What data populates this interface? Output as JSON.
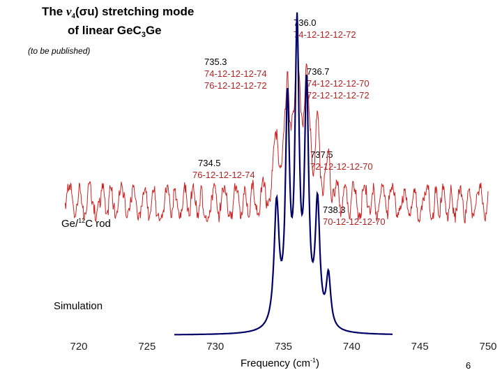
{
  "chart_data": {
    "type": "line",
    "title": {
      "prefix": "The ",
      "nu": "ν",
      "nu_sub": "4",
      "mode_symbol": "(σu)",
      "suffix": " stretching mode",
      "line2_prefix": "of linear  GeC",
      "line2_sub": "3",
      "line2_suffix": "Ge"
    },
    "note": "(to be published)",
    "xlabel": {
      "text": "Frequency (cm",
      "sup": "-1",
      "close": ")"
    },
    "xlim": [
      718,
      751
    ],
    "xticks": [
      720,
      725,
      730,
      735,
      740,
      745,
      750
    ],
    "page_number": "6",
    "series": [
      {
        "name": "Ge/12C rod",
        "label_prefix": "Ge/",
        "label_sup": "12",
        "label_suffix": "C rod",
        "color": "#cc2222",
        "x_range": [
          719,
          750
        ],
        "baseline_fraction": 0.3,
        "noise_fraction": 0.18,
        "peaks": [
          {
            "center": 734.5,
            "height": 0.38,
            "width": 0.22
          },
          {
            "center": 735.3,
            "height": 0.72,
            "width": 0.18
          },
          {
            "center": 736.0,
            "height": 1.0,
            "width": 0.18
          },
          {
            "center": 736.7,
            "height": 0.82,
            "width": 0.18
          },
          {
            "center": 737.5,
            "height": 0.4,
            "width": 0.2
          },
          {
            "center": 738.3,
            "height": 0.16,
            "width": 0.2
          }
        ]
      },
      {
        "name": "Simulation",
        "color": "#000066",
        "x_range": [
          727,
          743
        ],
        "baseline_fraction": 0.0,
        "noise_fraction": 0.0,
        "peaks": [
          {
            "center": 734.5,
            "height": 0.42,
            "width": 0.22
          },
          {
            "center": 735.3,
            "height": 0.75,
            "width": 0.18
          },
          {
            "center": 736.0,
            "height": 1.0,
            "width": 0.18
          },
          {
            "center": 736.7,
            "height": 0.8,
            "width": 0.18
          },
          {
            "center": 737.5,
            "height": 0.42,
            "width": 0.2
          },
          {
            "center": 738.3,
            "height": 0.18,
            "width": 0.2
          }
        ]
      }
    ],
    "annotations": [
      {
        "freq": "736.0",
        "isotopes": [
          "74-12-12-12-72"
        ]
      },
      {
        "freq": "735.3",
        "isotopes": [
          "74-12-12-12-74",
          "76-12-12-12-72"
        ]
      },
      {
        "freq": "736.7",
        "isotopes": [
          "74-12-12-12-70",
          "72-12-12-12-72"
        ]
      },
      {
        "freq": "734.5",
        "isotopes": [
          "76-12-12-12-74"
        ]
      },
      {
        "freq": "737.5",
        "isotopes": [
          "72-12-12-12-70"
        ]
      },
      {
        "freq": "738.3",
        "isotopes": [
          "70-12-12-12-70"
        ]
      }
    ]
  }
}
